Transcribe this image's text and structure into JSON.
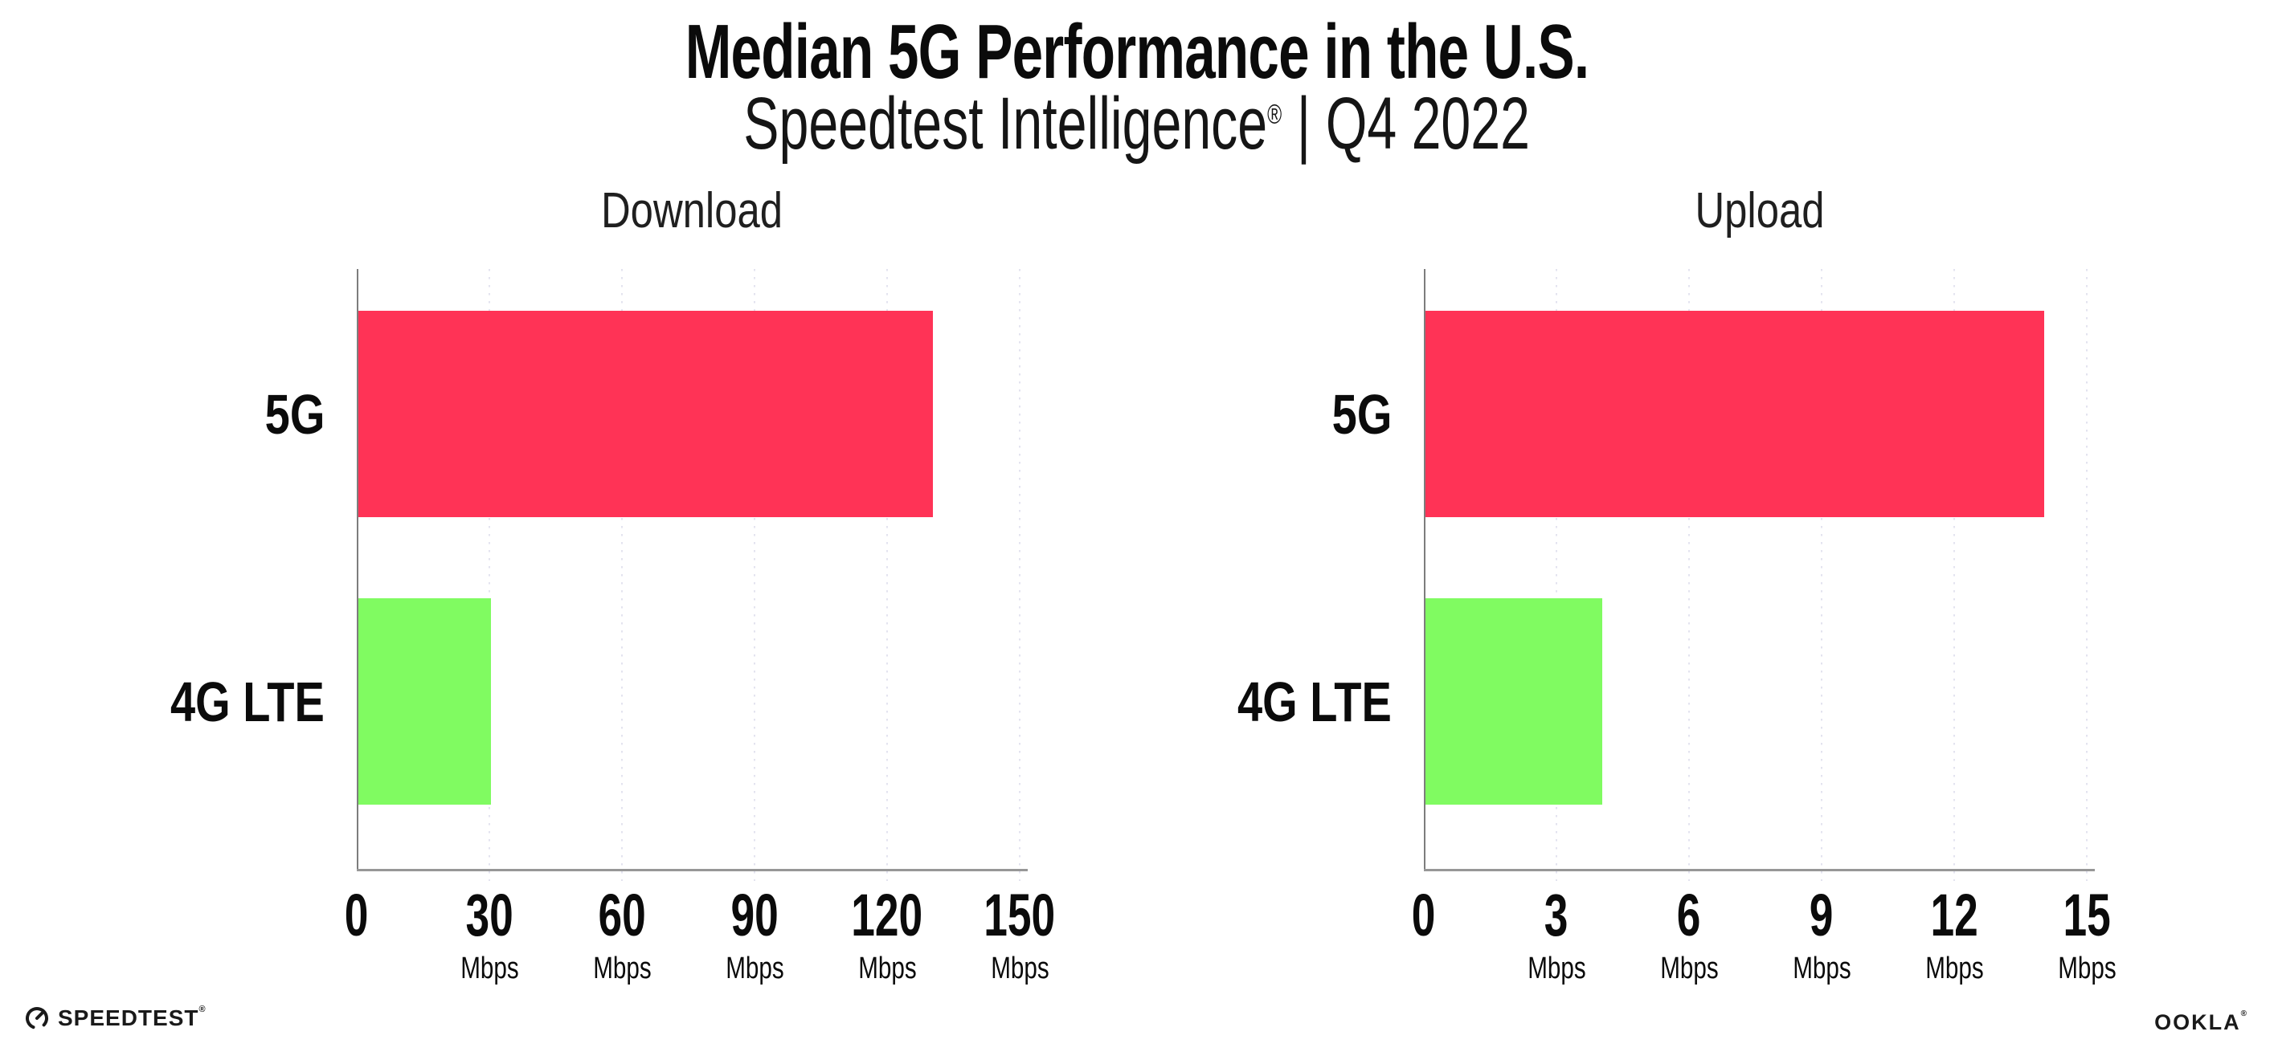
{
  "header": {
    "title": "Median 5G Performance in the U.S.",
    "subtitle": {
      "brand": "Speedtest Intelligence",
      "registered_mark": "®",
      "divider": "|",
      "period": "Q4 2022"
    }
  },
  "chart_data": [
    {
      "type": "bar",
      "orientation": "horizontal",
      "title": "Download",
      "categories": [
        "5G",
        "4G LTE"
      ],
      "values": [
        130,
        30
      ],
      "unit": "Mbps",
      "xlabel": "",
      "ylabel": "",
      "xlim": [
        0,
        152
      ],
      "xticks": [
        0,
        30,
        60,
        90,
        120,
        150
      ],
      "xtick_unit_label": "Mbps",
      "grid": "vertical-dotted",
      "legend": "none",
      "bar_colors": [
        "#FF3356",
        "#80FB61"
      ]
    },
    {
      "type": "bar",
      "orientation": "horizontal",
      "title": "Upload",
      "categories": [
        "5G",
        "4G LTE"
      ],
      "values": [
        14,
        4
      ],
      "unit": "Mbps",
      "xlabel": "",
      "ylabel": "",
      "xlim": [
        0,
        15.2
      ],
      "xticks": [
        0,
        3,
        6,
        9,
        12,
        15
      ],
      "xtick_unit_label": "Mbps",
      "grid": "vertical-dotted",
      "legend": "none",
      "bar_colors": [
        "#FF3356",
        "#80FB61"
      ]
    }
  ],
  "colors": {
    "bar_5g": "#FF3356",
    "bar_4g_lte": "#80FB61",
    "gridline": "#E3E3EF",
    "axis": "#979797",
    "text": "#0B0B0B",
    "background": "#FFFFFF"
  },
  "footer": {
    "speedtest_label": "SPEEDTEST",
    "speedtest_mark": "®",
    "ookla_label": "OOKLA",
    "ookla_mark": "®"
  }
}
